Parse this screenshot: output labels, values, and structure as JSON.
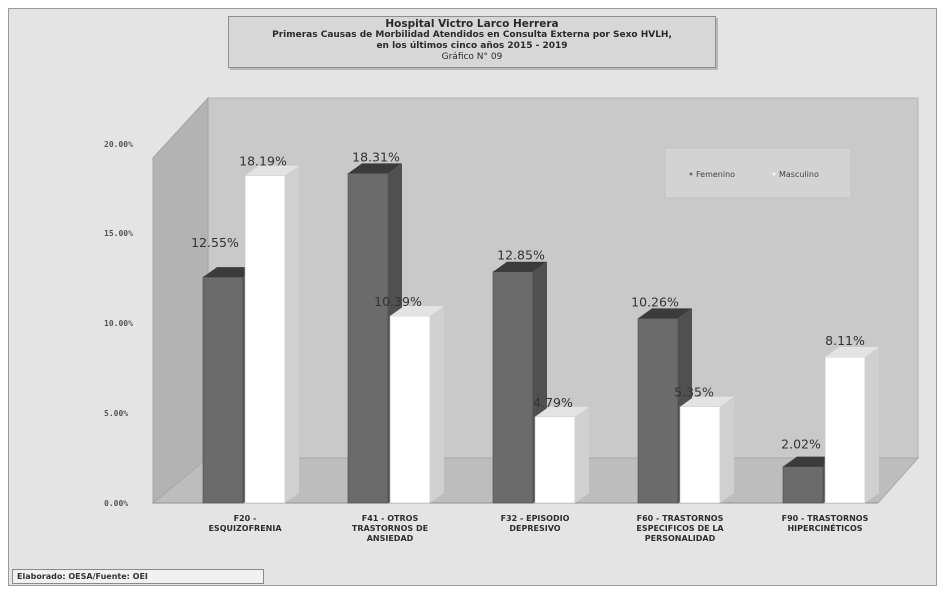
{
  "title_lines": [
    "Hospital Victro Larco Herrera",
    "Primeras Causas de Morbilidad Atendidos en Consulta Externa por Sexo HVLH,",
    "en los últimos cinco años 2015 - 2019",
    "Gráfico N° 09"
  ],
  "footer": "Elaborado: OESA/Fuente: OEI",
  "colors": {
    "femenino": "#6b6b6b",
    "masculino": "#ffffff",
    "wall": "#c9c9c9",
    "floor": "#bdbdbd"
  },
  "chart_data": {
    "type": "bar",
    "title": "Hospital Victro Larco Herrera",
    "categories": [
      [
        "F20 -",
        "ESQUIZOFRENIA"
      ],
      [
        "F41 - OTROS",
        "TRASTORNOS DE",
        "ANSIEDAD"
      ],
      [
        "F32 - EPISODIO",
        "DEPRESIVO"
      ],
      [
        "F60 - TRASTORNOS",
        "ESPECIFICOS DE LA",
        "PERSONALIDAD"
      ],
      [
        "F90 - TRASTORNOS",
        "HIPERCINÉTICOS"
      ]
    ],
    "series": [
      {
        "name": "Femenino",
        "values": [
          12.55,
          18.31,
          12.85,
          10.26,
          2.02
        ],
        "labels": [
          "12.55%",
          "18.31%",
          "12.85%",
          "10.26%",
          "2.02%"
        ]
      },
      {
        "name": "Masculino",
        "values": [
          18.19,
          10.39,
          4.79,
          5.35,
          8.11
        ],
        "labels": [
          "18.19%",
          "10.39%",
          "4.79%",
          "5.35%",
          "8.11%"
        ]
      }
    ],
    "y_ticks": [
      {
        "value": 0,
        "label": "0.00%"
      },
      {
        "value": 5,
        "label": "5.00%"
      },
      {
        "value": 10,
        "label": "10.00%"
      },
      {
        "value": 15,
        "label": "15.00%"
      },
      {
        "value": 20,
        "label": "20.00%"
      }
    ],
    "ylim": [
      0,
      20
    ],
    "legend_position": "top-right",
    "style": "3d-bar"
  }
}
